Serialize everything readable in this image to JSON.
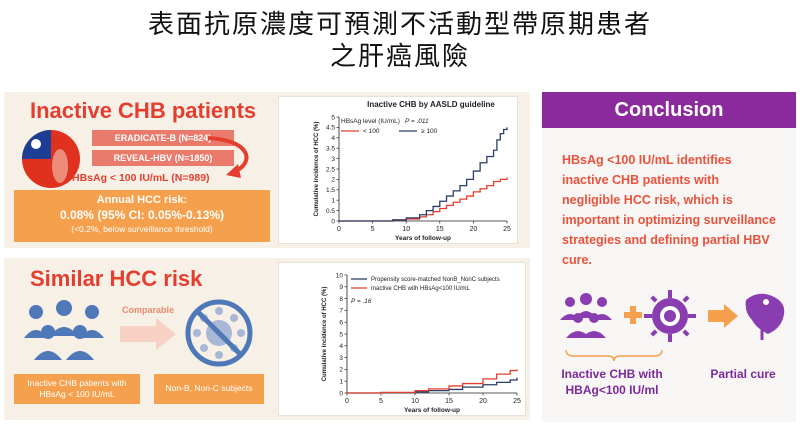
{
  "title": {
    "line1": "表面抗原濃度可預測不活動型帶原期患者",
    "line2": "之肝癌風險"
  },
  "inactive_panel": {
    "heading": "Inactive CHB patients",
    "cohort1": "ERADICATE-B (N=824)",
    "cohort2": "REVEAL-HBV (N=1850)",
    "threshold": "HBsAg < 100 IU/mL (N=989)",
    "annual_title": "Annual HCC risk:",
    "annual_value": "0.08% (95% CI: 0.05%-0.13%)",
    "annual_note": "(<0.2%, below surveillance threshold)",
    "flag_icon": "taiwan-map-flag-icon",
    "colors": {
      "heading": "#e53e2f",
      "box": "#f5a04c",
      "cohort": "#e97a6c"
    }
  },
  "similar_panel": {
    "heading": "Similar HCC risk",
    "comparable": "Comparable",
    "group_left": "Inactive CHB patients with HBsAg < 100 IU/mL",
    "group_right": "Non-B, Non-C subjects",
    "icons": [
      "people-group-icon",
      "arrow-right-icon",
      "virus-crossed-icon"
    ]
  },
  "conclusion": {
    "heading": "Conclusion",
    "text": "HBsAg <100 IU/mL identifies inactive CHB patients with negligible HCC risk, which is important in optimizing surveillance strategies and defining partial HBV cure.",
    "label_left": "Inactive CHB with HBAg<100 IU/ml",
    "label_right": "Partial cure",
    "icons": [
      "people-group-icon",
      "plus-icon",
      "virus-icon",
      "arrow-right-icon",
      "liver-icon"
    ],
    "colors": {
      "header": "#8a2a9d",
      "text": "#e9533b",
      "label": "#7a2a9a"
    }
  },
  "chart_data": [
    {
      "type": "line",
      "title": "Inactive CHB by AASLD guideline",
      "legend_title": "HBsAg level (IU/mL)",
      "pvalue": "P = .011",
      "xlabel": "Years of follow-up",
      "ylabel": "Cumulative incidence of HCC (%)",
      "xlim": [
        0,
        25
      ],
      "ylim": [
        0,
        5
      ],
      "xticks": [
        "0",
        "5",
        "10",
        "15",
        "20",
        "25"
      ],
      "yticks": [
        "0",
        "0.5",
        "1",
        "1.5",
        "2",
        "2.5",
        "3",
        "3.5",
        "4",
        "4.5",
        "5"
      ],
      "series": [
        {
          "name": "< 100",
          "color": "#e53e2f",
          "x": [
            0,
            5,
            8,
            10,
            12,
            13,
            14,
            15,
            16,
            17,
            18,
            19,
            20,
            21,
            22,
            23,
            24,
            25
          ],
          "y": [
            0,
            0,
            0.05,
            0.1,
            0.2,
            0.3,
            0.45,
            0.6,
            0.75,
            0.9,
            1.05,
            1.2,
            1.4,
            1.55,
            1.7,
            1.9,
            2.0,
            2.1
          ]
        },
        {
          "name": "≥ 100",
          "color": "#2a3f66",
          "x": [
            0,
            5,
            8,
            10,
            12,
            13,
            14,
            15,
            16,
            17,
            18,
            19,
            20,
            21,
            22,
            23,
            23.5,
            24,
            24.5,
            25
          ],
          "y": [
            0,
            0,
            0.05,
            0.15,
            0.3,
            0.5,
            0.7,
            0.95,
            1.2,
            1.45,
            1.7,
            2.0,
            2.4,
            2.8,
            3.1,
            3.4,
            3.9,
            4.2,
            4.4,
            4.5
          ]
        }
      ]
    },
    {
      "type": "line",
      "legend_title": "",
      "pvalue": "P = .16",
      "xlabel": "Years of follow-up",
      "ylabel": "Cumulative incidence of HCC (%)",
      "xlim": [
        0,
        25
      ],
      "ylim": [
        0,
        10
      ],
      "xticks": [
        "0",
        "5",
        "10",
        "15",
        "20",
        "25"
      ],
      "yticks": [
        "0",
        "1",
        "2",
        "3",
        "4",
        "5",
        "6",
        "7",
        "8",
        "9",
        "10"
      ],
      "series": [
        {
          "name": "Propensity score-matched NonB_NonC subjects",
          "color": "#2a3f66",
          "x": [
            0,
            5,
            10,
            12,
            15,
            17,
            20,
            22,
            24,
            25
          ],
          "y": [
            0,
            0.02,
            0.1,
            0.2,
            0.3,
            0.5,
            0.7,
            0.9,
            1.1,
            1.3
          ]
        },
        {
          "name": "Inactive CHB with HBsAg<100 IU/mL",
          "color": "#e53e2f",
          "x": [
            0,
            5,
            10,
            12,
            15,
            17,
            20,
            22,
            24,
            25
          ],
          "y": [
            0,
            0.05,
            0.2,
            0.35,
            0.6,
            0.8,
            1.2,
            1.6,
            1.9,
            2.0
          ]
        }
      ]
    }
  ]
}
